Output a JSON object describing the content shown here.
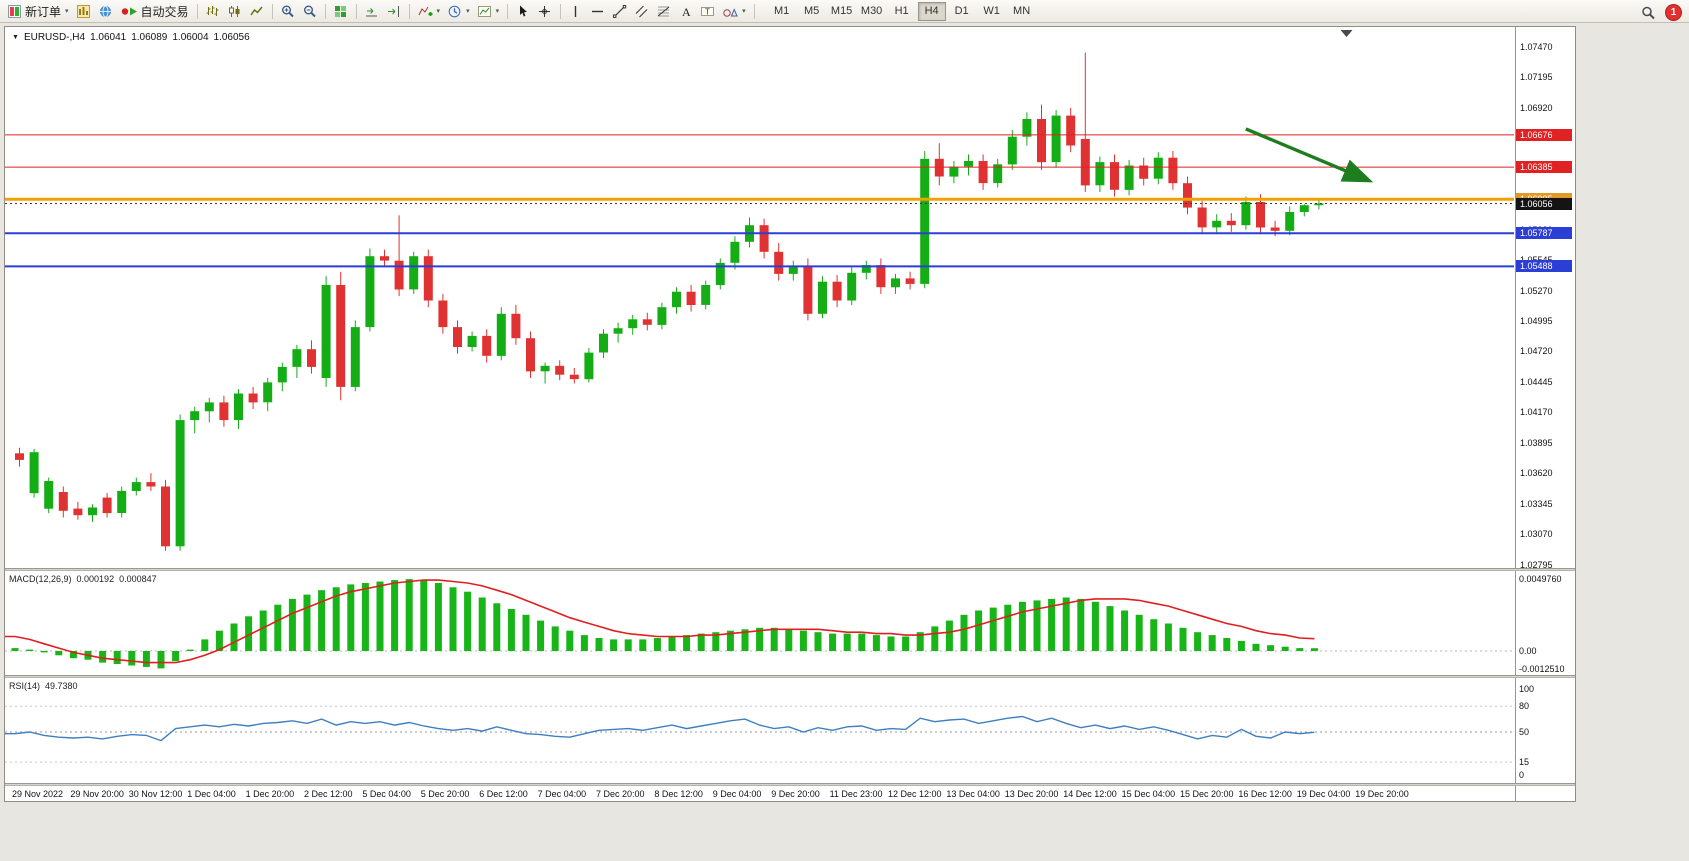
{
  "title": {
    "symbol_period": "EURUSD-,H4",
    "open": "1.06041",
    "high": "1.06089",
    "low": "1.06004",
    "close": "1.06056"
  },
  "toolbar": {
    "notification_count": "1",
    "active_timeframe": "H4",
    "timeframes": [
      "M1",
      "M5",
      "M15",
      "M30",
      "H1",
      "H4",
      "D1",
      "W1",
      "MN"
    ],
    "buttons": [
      {
        "name": "new-order-button",
        "icon": "new-order-icon",
        "label": "新订单",
        "dropdown": true
      },
      {
        "name": "charts-button",
        "icon": "charts-icon"
      },
      {
        "name": "market-watch-button",
        "icon": "globe-icon"
      },
      {
        "name": "autotrading-button",
        "icon": "autotrading-icon",
        "label": "自动交易"
      },
      {
        "sep": true
      },
      {
        "name": "bar-chart-button",
        "icon": "bar-chart-icon"
      },
      {
        "name": "candlestick-chart-button",
        "icon": "candlestick-icon"
      },
      {
        "name": "line-chart-button",
        "icon": "line-chart-icon"
      },
      {
        "sep": true
      },
      {
        "name": "zoom-in-button",
        "icon": "zoom-in-icon"
      },
      {
        "name": "zoom-out-button",
        "icon": "zoom-out-icon"
      },
      {
        "sep": true
      },
      {
        "name": "tile-windows-button",
        "icon": "tile-windows-icon"
      },
      {
        "sep": true
      },
      {
        "name": "auto-scroll-button",
        "icon": "auto-scroll-icon"
      },
      {
        "name": "chart-shift-button",
        "icon": "chart-shift-icon"
      },
      {
        "sep": true
      },
      {
        "name": "indicators-button",
        "icon": "indicators-icon",
        "dropdown": true
      },
      {
        "name": "periods-button",
        "icon": "periods-icon",
        "dropdown": true
      },
      {
        "name": "templates-button",
        "icon": "templates-icon",
        "dropdown": true
      },
      {
        "sep": true
      },
      {
        "name": "cursor-button",
        "icon": "cursor-icon"
      },
      {
        "name": "crosshair-button",
        "icon": "crosshair-icon"
      },
      {
        "sep": true
      },
      {
        "name": "vertical-line-button",
        "icon": "vertical-line-icon"
      },
      {
        "name": "horizontal-line-button",
        "icon": "horizontal-line-icon"
      },
      {
        "name": "trendline-button",
        "icon": "trendline-icon"
      },
      {
        "name": "equidistant-channel-button",
        "icon": "channel-icon"
      },
      {
        "name": "fibonacci-button",
        "icon": "fibonacci-icon"
      },
      {
        "name": "text-button",
        "icon": "text-icon"
      },
      {
        "name": "text-label-button",
        "icon": "text-label-icon"
      },
      {
        "name": "arrows-button",
        "icon": "shapes-icon",
        "dropdown": true
      },
      {
        "sep": true
      }
    ]
  },
  "indicators": {
    "macd": {
      "name": "MACD(12,26,9)",
      "main_value": "0.000192",
      "signal_value": "0.000847"
    },
    "rsi": {
      "name": "RSI(14)",
      "value": "49.7380"
    }
  },
  "chart_data": {
    "type": "candlestick",
    "symbol": "EURUSD-",
    "timeframe": "H4",
    "current_bar": {
      "open": 1.06041,
      "high": 1.06089,
      "low": 1.06004,
      "close": 1.06056
    },
    "price_axis": {
      "max": 1.0747,
      "min": 1.028,
      "tick_step": 0.00275,
      "ticks": 18
    },
    "up_color": "#15ad15",
    "down_color": "#e03232",
    "candles": [
      [
        1.038,
        1.0385,
        1.0368,
        1.0374
      ],
      [
        1.0344,
        1.0384,
        1.034,
        1.0381
      ],
      [
        1.033,
        1.0358,
        1.0326,
        1.0355
      ],
      [
        1.0345,
        1.035,
        1.0322,
        1.0328
      ],
      [
        1.033,
        1.0336,
        1.032,
        1.0324
      ],
      [
        1.0324,
        1.0334,
        1.0318,
        1.0331
      ],
      [
        1.034,
        1.0344,
        1.0322,
        1.0326
      ],
      [
        1.0326,
        1.035,
        1.0322,
        1.0346
      ],
      [
        1.0346,
        1.0358,
        1.0342,
        1.0354
      ],
      [
        1.0354,
        1.0362,
        1.0346,
        1.035
      ],
      [
        1.035,
        1.0356,
        1.0292,
        1.0296
      ],
      [
        1.0296,
        1.0415,
        1.0292,
        1.041
      ],
      [
        1.041,
        1.0422,
        1.0398,
        1.0418
      ],
      [
        1.0418,
        1.043,
        1.0408,
        1.0426
      ],
      [
        1.0426,
        1.0432,
        1.0404,
        1.041
      ],
      [
        1.041,
        1.0438,
        1.0402,
        1.0434
      ],
      [
        1.0434,
        1.044,
        1.042,
        1.0426
      ],
      [
        1.0426,
        1.0448,
        1.0418,
        1.0444
      ],
      [
        1.0444,
        1.0462,
        1.0436,
        1.0458
      ],
      [
        1.0458,
        1.0478,
        1.0448,
        1.0474
      ],
      [
        1.0474,
        1.0482,
        1.0452,
        1.0458
      ],
      [
        1.0448,
        1.054,
        1.044,
        1.0532
      ],
      [
        1.0532,
        1.0544,
        1.0428,
        1.044
      ],
      [
        1.044,
        1.05,
        1.0436,
        1.0494
      ],
      [
        1.0494,
        1.0565,
        1.049,
        1.0558
      ],
      [
        1.0558,
        1.0564,
        1.0548,
        1.0554
      ],
      [
        1.0554,
        1.0595,
        1.0522,
        1.0528
      ],
      [
        1.0528,
        1.0562,
        1.0524,
        1.0558
      ],
      [
        1.0558,
        1.0564,
        1.0512,
        1.0518
      ],
      [
        1.0518,
        1.0524,
        1.0488,
        1.0494
      ],
      [
        1.0494,
        1.05,
        1.047,
        1.0476
      ],
      [
        1.0476,
        1.049,
        1.0472,
        1.0486
      ],
      [
        1.0486,
        1.0492,
        1.0462,
        1.0468
      ],
      [
        1.0468,
        1.0512,
        1.0464,
        1.0506
      ],
      [
        1.0506,
        1.0514,
        1.0478,
        1.0484
      ],
      [
        1.0484,
        1.049,
        1.0448,
        1.0454
      ],
      [
        1.0454,
        1.0462,
        1.0443,
        1.0459
      ],
      [
        1.0459,
        1.0464,
        1.0446,
        1.0451
      ],
      [
        1.0451,
        1.0457,
        1.0443,
        1.0447
      ],
      [
        1.0447,
        1.0475,
        1.0444,
        1.0471
      ],
      [
        1.0471,
        1.0492,
        1.0466,
        1.0488
      ],
      [
        1.0488,
        1.0498,
        1.048,
        1.0493
      ],
      [
        1.0493,
        1.0505,
        1.0487,
        1.0501
      ],
      [
        1.0501,
        1.0507,
        1.0491,
        1.0496
      ],
      [
        1.0496,
        1.0516,
        1.0492,
        1.0512
      ],
      [
        1.0512,
        1.053,
        1.0506,
        1.0526
      ],
      [
        1.0526,
        1.0532,
        1.0508,
        1.0514
      ],
      [
        1.0514,
        1.0536,
        1.051,
        1.0532
      ],
      [
        1.0532,
        1.0556,
        1.0528,
        1.0552
      ],
      [
        1.0552,
        1.0576,
        1.0546,
        1.0571
      ],
      [
        1.0571,
        1.0593,
        1.0566,
        1.0586
      ],
      [
        1.0586,
        1.0592,
        1.0556,
        1.0562
      ],
      [
        1.0562,
        1.057,
        1.0536,
        1.0542
      ],
      [
        1.0542,
        1.0554,
        1.0536,
        1.0549
      ],
      [
        1.0549,
        1.0556,
        1.05,
        1.0506
      ],
      [
        1.0506,
        1.054,
        1.0502,
        1.0535
      ],
      [
        1.0535,
        1.0541,
        1.0512,
        1.0518
      ],
      [
        1.0518,
        1.0548,
        1.0514,
        1.0543
      ],
      [
        1.0543,
        1.0554,
        1.0537,
        1.055
      ],
      [
        1.055,
        1.0556,
        1.0524,
        1.053
      ],
      [
        1.053,
        1.0542,
        1.0524,
        1.0538
      ],
      [
        1.0538,
        1.0544,
        1.0528,
        1.0533
      ],
      [
        1.0533,
        1.0653,
        1.0529,
        1.0646
      ],
      [
        1.0646,
        1.066,
        1.0622,
        1.063
      ],
      [
        1.063,
        1.0644,
        1.0624,
        1.0639
      ],
      [
        1.0639,
        1.065,
        1.0631,
        1.0644
      ],
      [
        1.0644,
        1.065,
        1.0618,
        1.0624
      ],
      [
        1.0624,
        1.0646,
        1.062,
        1.0641
      ],
      [
        1.0641,
        1.0672,
        1.0636,
        1.0666
      ],
      [
        1.0666,
        1.0688,
        1.0658,
        1.0682
      ],
      [
        1.0682,
        1.0695,
        1.0636,
        1.0643
      ],
      [
        1.0643,
        1.069,
        1.0638,
        1.0685
      ],
      [
        1.0685,
        1.0692,
        1.0652,
        1.0658
      ],
      [
        1.0664,
        1.0742,
        1.0616,
        1.0622
      ],
      [
        1.0622,
        1.0648,
        1.0616,
        1.0643
      ],
      [
        1.0643,
        1.065,
        1.0612,
        1.0618
      ],
      [
        1.0618,
        1.0645,
        1.0613,
        1.064
      ],
      [
        1.064,
        1.0647,
        1.0622,
        1.0628
      ],
      [
        1.0628,
        1.0652,
        1.0623,
        1.0647
      ],
      [
        1.0647,
        1.0653,
        1.0618,
        1.0624
      ],
      [
        1.0624,
        1.063,
        1.0596,
        1.0602
      ],
      [
        1.0602,
        1.0608,
        1.0578,
        1.0584
      ],
      [
        1.0584,
        1.0596,
        1.0578,
        1.059
      ],
      [
        1.059,
        1.0597,
        1.058,
        1.0586
      ],
      [
        1.0586,
        1.0612,
        1.0582,
        1.0607
      ],
      [
        1.0607,
        1.0614,
        1.0578,
        1.0584
      ],
      [
        1.0584,
        1.059,
        1.0576,
        1.0581
      ],
      [
        1.0581,
        1.0603,
        1.0577,
        1.0598
      ],
      [
        1.0598,
        1.0605,
        1.0594,
        1.06041
      ],
      [
        1.06041,
        1.06089,
        1.06004,
        1.06056
      ]
    ],
    "hlines": [
      {
        "price": 1.06676,
        "label": "1.06676",
        "color": "#e02222",
        "width": 1,
        "style": "solid",
        "badge_bg": "#e02222"
      },
      {
        "price": 1.06385,
        "label": "1.06385",
        "color": "#e02222",
        "width": 1,
        "style": "solid",
        "badge_bg": "#e02222"
      },
      {
        "price": 1.06095,
        "label": "1.06095",
        "color": "#f0a202",
        "width": 3,
        "style": "solid",
        "badge_bg": "#e3992a"
      },
      {
        "price": 1.06056,
        "label": "1.06056",
        "color": "#3a3a3a",
        "width": 1,
        "style": "dotted",
        "badge_bg": "#141414"
      },
      {
        "price": 1.05787,
        "label": "1.05787",
        "color": "#2b3fd6",
        "width": 2,
        "style": "solid",
        "badge_bg": "#2b3fd6"
      },
      {
        "price": 1.05488,
        "label": "1.05488",
        "color": "#2b3fd6",
        "width": 2,
        "style": "solid",
        "badge_bg": "#2b3fd6"
      }
    ],
    "annotation_arrow": {
      "from_index": 84.3,
      "from_price": 1.0673,
      "to_index": 92.6,
      "to_price": 1.0627,
      "color": "#1e7d1e"
    },
    "shift_marker_index": 91.2,
    "time_labels": [
      "29 Nov 2022",
      "29 Nov 20:00",
      "30 Nov 12:00",
      "1 Dec 04:00",
      "1 Dec 20:00",
      "2 Dec 12:00",
      "5 Dec 04:00",
      "5 Dec 20:00",
      "6 Dec 12:00",
      "7 Dec 04:00",
      "7 Dec 20:00",
      "8 Dec 12:00",
      "9 Dec 04:00",
      "9 Dec 20:00",
      "11 Dec 23:00",
      "12 Dec 12:00",
      "13 Dec 04:00",
      "13 Dec 20:00",
      "14 Dec 12:00",
      "15 Dec 04:00",
      "15 Dec 20:00",
      "16 Dec 12:00",
      "19 Dec 04:00",
      "19 Dec 20:00"
    ],
    "macd": {
      "color_hist": "#17b517",
      "color_signal": "#e02020",
      "scale": [
        {
          "text": "0.0049760",
          "value": 0.004976
        },
        {
          "text": "0.00",
          "value": 0
        },
        {
          "text": "-0.0012510",
          "value": -0.001251
        }
      ],
      "histogram": [
        0.0002,
        0.0001,
        -0.0001,
        -0.0003,
        -0.0005,
        -0.0006,
        -0.0008,
        -0.0009,
        -0.001,
        -0.0011,
        -0.0012,
        -0.0007,
        0.0001,
        0.0008,
        0.0014,
        0.0019,
        0.0024,
        0.0028,
        0.0032,
        0.0036,
        0.0039,
        0.0042,
        0.0044,
        0.0046,
        0.0047,
        0.0048,
        0.0049,
        0.00497,
        0.0049,
        0.0047,
        0.0044,
        0.0041,
        0.0037,
        0.0033,
        0.0029,
        0.0025,
        0.0021,
        0.0017,
        0.0014,
        0.0011,
        0.0009,
        0.0008,
        0.0008,
        0.0008,
        0.0009,
        0.001,
        0.0011,
        0.0012,
        0.0013,
        0.0014,
        0.0015,
        0.0016,
        0.0016,
        0.0015,
        0.0014,
        0.0013,
        0.0012,
        0.0012,
        0.0012,
        0.0011,
        0.001,
        0.001,
        0.0013,
        0.0017,
        0.0021,
        0.0025,
        0.0028,
        0.003,
        0.0032,
        0.0034,
        0.0035,
        0.0036,
        0.0037,
        0.0036,
        0.0034,
        0.0031,
        0.0028,
        0.0025,
        0.0022,
        0.0019,
        0.0016,
        0.0013,
        0.0011,
        0.0009,
        0.0007,
        0.0005,
        0.0004,
        0.0003,
        0.0002,
        0.000192
      ],
      "signal": [
        0.001,
        0.0008,
        0.0005,
        0.0002,
        -0.0001,
        -0.0003,
        -0.0005,
        -0.0006,
        -0.0007,
        -0.0008,
        -0.0008,
        -0.0008,
        -0.0006,
        -0.0003,
        0.0001,
        0.0006,
        0.0011,
        0.0016,
        0.0021,
        0.0026,
        0.003,
        0.0034,
        0.0038,
        0.0041,
        0.0043,
        0.0045,
        0.0047,
        0.0048,
        0.0049,
        0.0049,
        0.0048,
        0.0047,
        0.0045,
        0.0042,
        0.0039,
        0.0035,
        0.0031,
        0.0027,
        0.0023,
        0.002,
        0.0017,
        0.0014,
        0.0012,
        0.0011,
        0.001,
        0.001,
        0.001,
        0.0011,
        0.0011,
        0.0012,
        0.0013,
        0.0014,
        0.0015,
        0.0015,
        0.0015,
        0.0015,
        0.0014,
        0.0013,
        0.0013,
        0.0012,
        0.0012,
        0.0011,
        0.0011,
        0.0012,
        0.0013,
        0.0015,
        0.0018,
        0.0021,
        0.0024,
        0.0027,
        0.0029,
        0.0031,
        0.0033,
        0.0035,
        0.0036,
        0.0036,
        0.0036,
        0.0035,
        0.0033,
        0.0031,
        0.0028,
        0.0025,
        0.0022,
        0.0019,
        0.0017,
        0.0014,
        0.0012,
        0.0011,
        0.0009,
        0.000847
      ]
    },
    "rsi": {
      "color": "#3e7fc1",
      "scale": [
        {
          "text": "100",
          "value": 100
        },
        {
          "text": "80",
          "value": 80
        },
        {
          "text": "50",
          "value": 50
        },
        {
          "text": "15",
          "value": 15
        },
        {
          "text": "0",
          "value": 0
        }
      ],
      "levels": [
        80,
        50,
        15
      ],
      "values": [
        48,
        50,
        46,
        44,
        43,
        44,
        42,
        45,
        47,
        46,
        40,
        54,
        56,
        58,
        56,
        59,
        57,
        60,
        61,
        63,
        60,
        65,
        58,
        62,
        60,
        62,
        58,
        61,
        57,
        54,
        52,
        54,
        51,
        56,
        52,
        48,
        47,
        45,
        44,
        48,
        52,
        53,
        54,
        52,
        55,
        58,
        54,
        57,
        60,
        63,
        65,
        58,
        54,
        56,
        50,
        55,
        52,
        56,
        57,
        52,
        54,
        53,
        66,
        62,
        64,
        65,
        60,
        63,
        66,
        68,
        62,
        66,
        60,
        55,
        58,
        54,
        57,
        53,
        56,
        52,
        47,
        42,
        46,
        44,
        53,
        45,
        43,
        50,
        48,
        49.7
      ]
    }
  }
}
